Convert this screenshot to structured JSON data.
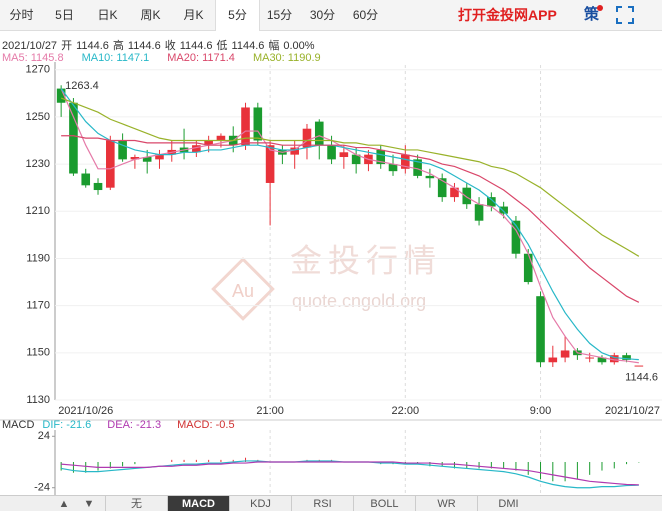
{
  "tabs": [
    "分时",
    "5日",
    "日K",
    "周K",
    "月K",
    "5分",
    "15分",
    "30分",
    "60分"
  ],
  "active_tab": 5,
  "app_link": "打开金投网APP",
  "strategy": "策",
  "info": {
    "date": "2021/10/27",
    "items": [
      {
        "label": "开",
        "value": "1144.6"
      },
      {
        "label": "高",
        "value": "1144.6"
      },
      {
        "label": "收",
        "value": "1144.6"
      },
      {
        "label": "低",
        "value": "1144.6"
      },
      {
        "label": "幅",
        "value": "0.00%"
      }
    ]
  },
  "watermark": {
    "logo": "Au",
    "brand": "金投行情",
    "url": "quote.cngold.org"
  },
  "arrows": [
    "▲",
    "▼"
  ],
  "indicator_tabs": [
    "无",
    "MACD",
    "KDJ",
    "RSI",
    "BOLL",
    "WR",
    "DMI"
  ],
  "active_indicator": 1,
  "chart_data": [
    {
      "type": "candlestick",
      "up_color": "#e8323a",
      "down_color": "#1a9b2e",
      "max_label": "1263.4",
      "last_label": "1144.6",
      "categories": [
        null,
        null,
        "2021/10/26",
        null,
        null,
        null,
        null,
        null,
        null,
        null,
        null,
        null,
        null,
        null,
        null,
        null,
        null,
        "21:00",
        null,
        null,
        null,
        null,
        null,
        null,
        null,
        null,
        null,
        null,
        "22:00",
        null,
        null,
        null,
        null,
        null,
        null,
        null,
        null,
        null,
        null,
        "9:00",
        null,
        null,
        null,
        null,
        null,
        null,
        null,
        "2021/10/27"
      ],
      "candles": [
        [
          1262,
          1263.4,
          1250,
          1256
        ],
        [
          1256,
          1258,
          1225,
          1226
        ],
        [
          1226,
          1228,
          1220,
          1221
        ],
        [
          1222,
          1224,
          1217,
          1219
        ],
        [
          1220,
          1242,
          1219,
          1240
        ],
        [
          1240,
          1243,
          1231,
          1232
        ],
        [
          1232,
          1234,
          1228,
          1233
        ],
        [
          1233,
          1236,
          1226,
          1231
        ],
        [
          1232,
          1236,
          1228,
          1234
        ],
        [
          1234,
          1240,
          1231,
          1236
        ],
        [
          1237,
          1245,
          1232,
          1235
        ],
        [
          1235,
          1240,
          1233,
          1238
        ],
        [
          1238,
          1242,
          1235,
          1240
        ],
        [
          1240,
          1243,
          1237,
          1242
        ],
        [
          1242,
          1246,
          1235,
          1238
        ],
        [
          1238,
          1256,
          1236,
          1254
        ],
        [
          1254,
          1256,
          1238,
          1240
        ],
        [
          1222,
          1240,
          1204,
          1238
        ],
        [
          1236,
          1238,
          1230,
          1234
        ],
        [
          1234,
          1240,
          1228,
          1237
        ],
        [
          1237,
          1247,
          1232,
          1245
        ],
        [
          1248,
          1249,
          1232,
          1238
        ],
        [
          1238,
          1242,
          1230,
          1232
        ],
        [
          1233,
          1238,
          1228,
          1235
        ],
        [
          1234,
          1237,
          1226,
          1230
        ],
        [
          1230,
          1236,
          1227,
          1234
        ],
        [
          1236,
          1238,
          1228,
          1230
        ],
        [
          1230,
          1234,
          1225,
          1227
        ],
        [
          1228,
          1238,
          1226,
          1234
        ],
        [
          1232,
          1234,
          1224,
          1225
        ],
        [
          1225,
          1228,
          1220,
          1224
        ],
        [
          1224,
          1226,
          1214,
          1216
        ],
        [
          1216,
          1222,
          1214,
          1220
        ],
        [
          1220,
          1222,
          1211,
          1213
        ],
        [
          1213,
          1216,
          1204,
          1206
        ],
        [
          1216,
          1218,
          1210,
          1212
        ],
        [
          1212,
          1214,
          1207,
          1209
        ],
        [
          1206,
          1208,
          1190,
          1192
        ],
        [
          1192,
          1194,
          1179,
          1180
        ],
        [
          1174,
          1176,
          1144,
          1146
        ],
        [
          1146,
          1153,
          1144,
          1148
        ],
        [
          1148,
          1157,
          1146,
          1151
        ],
        [
          1151,
          1152,
          1147,
          1149
        ],
        [
          1148,
          1150,
          1146,
          1148
        ],
        [
          1148,
          1149,
          1145,
          1146
        ],
        [
          1146,
          1150,
          1145,
          1149
        ],
        [
          1149,
          1150,
          1146,
          1147
        ],
        [
          1144.6,
          1144.6,
          1144.6,
          1144.6
        ]
      ],
      "series": [
        {
          "name": "MA5: 1145.8",
          "color": "#e57aa8",
          "values": [
            1262,
            1250,
            1238,
            1228,
            1228,
            1230,
            1232,
            1233,
            1234,
            1235,
            1236,
            1237,
            1238,
            1239,
            1240,
            1244,
            1244,
            1236,
            1235,
            1236,
            1240,
            1242,
            1240,
            1237,
            1234,
            1232,
            1231,
            1230,
            1229,
            1228,
            1226,
            1223,
            1220,
            1216,
            1213,
            1212,
            1208,
            1202,
            1192,
            1178,
            1165,
            1157,
            1150,
            1149,
            1148,
            1147,
            1146.5,
            1145.8
          ]
        },
        {
          "name": "MA10: 1147.1",
          "color": "#28b8c8",
          "values": [
            1262,
            1255,
            1248,
            1243,
            1240,
            1238,
            1236,
            1235,
            1234,
            1234,
            1235,
            1235,
            1236,
            1236,
            1237,
            1238,
            1238,
            1237,
            1236,
            1236,
            1237,
            1238,
            1238,
            1237,
            1236,
            1235,
            1234,
            1233,
            1232,
            1231,
            1230,
            1228,
            1225,
            1222,
            1219,
            1215,
            1210,
            1204,
            1196,
            1186,
            1176,
            1167,
            1160,
            1154,
            1150,
            1148,
            1147.5,
            1147.1
          ]
        },
        {
          "name": "MA20: 1171.4",
          "color": "#d9476a",
          "values": [
            1242,
            1242,
            1241,
            1241,
            1240,
            1240,
            1240,
            1239,
            1239,
            1239,
            1239,
            1239,
            1238,
            1238,
            1238,
            1239,
            1239,
            1239,
            1238,
            1238,
            1238,
            1238,
            1238,
            1238,
            1237,
            1237,
            1236,
            1235,
            1234,
            1233,
            1232,
            1230,
            1229,
            1227,
            1225,
            1222,
            1219,
            1215,
            1211,
            1206,
            1201,
            1196,
            1191,
            1186,
            1182,
            1178,
            1174,
            1171.4
          ]
        },
        {
          "name": "MA30: 1190.9",
          "color": "#99b22a",
          "values": [
            1258,
            1256,
            1254,
            1252,
            1249,
            1247,
            1245,
            1243,
            1241,
            1240,
            1240,
            1240,
            1240,
            1240,
            1240,
            1241,
            1241,
            1240,
            1240,
            1240,
            1240,
            1240,
            1240,
            1239,
            1239,
            1238,
            1238,
            1237,
            1236,
            1236,
            1235,
            1234,
            1233,
            1232,
            1231,
            1229,
            1228,
            1226,
            1223,
            1220,
            1216,
            1212,
            1208,
            1204,
            1200,
            1197,
            1194,
            1190.9
          ]
        }
      ],
      "ylim": [
        1130,
        1272
      ],
      "yticks": [
        1270,
        1250,
        1230,
        1210,
        1190,
        1170,
        1150,
        1130
      ],
      "grid": true
    },
    {
      "type": "macd",
      "title": "MACD",
      "series": [
        {
          "name": "DIF: -21.6",
          "color": "#28b8c8",
          "values": [
            -6,
            -8,
            -9,
            -9,
            -8,
            -7,
            -6,
            -5,
            -4,
            -3,
            -2,
            -2,
            -1,
            -1,
            0,
            1,
            1,
            0,
            0,
            0,
            1,
            1,
            1,
            0,
            0,
            0,
            -1,
            -1,
            -2,
            -2,
            -3,
            -4,
            -5,
            -6,
            -7,
            -8,
            -9,
            -11,
            -14,
            -18,
            -21,
            -23,
            -24,
            -24,
            -23,
            -23,
            -22,
            -21.6
          ]
        },
        {
          "name": "DEA: -21.3",
          "color": "#b03ab0",
          "values": [
            -2,
            -3,
            -4,
            -5,
            -5,
            -5,
            -5,
            -5,
            -4,
            -4,
            -3,
            -3,
            -2,
            -2,
            -1,
            -1,
            0,
            0,
            0,
            0,
            0,
            0,
            0,
            0,
            0,
            0,
            0,
            0,
            -1,
            -1,
            -1,
            -2,
            -2,
            -3,
            -4,
            -5,
            -6,
            -7,
            -8,
            -10,
            -12,
            -14,
            -16,
            -18,
            -19,
            -20,
            -21,
            -21.3
          ]
        }
      ],
      "histogram": {
        "name": "MACD: -0.5",
        "color": "#d03030",
        "values": [
          -8,
          -10,
          -10,
          -8,
          -6,
          -4,
          -2,
          0,
          0,
          2,
          2,
          2,
          2,
          2,
          2,
          4,
          2,
          0,
          0,
          0,
          2,
          2,
          2,
          0,
          0,
          0,
          -2,
          -2,
          -2,
          -2,
          -4,
          -4,
          -6,
          -6,
          -6,
          -6,
          -6,
          -8,
          -12,
          -16,
          -18,
          -18,
          -16,
          -12,
          -8,
          -6,
          -2,
          -0.5
        ]
      },
      "ylim": [
        -28,
        28
      ],
      "yticks": [
        24,
        -24
      ]
    }
  ]
}
